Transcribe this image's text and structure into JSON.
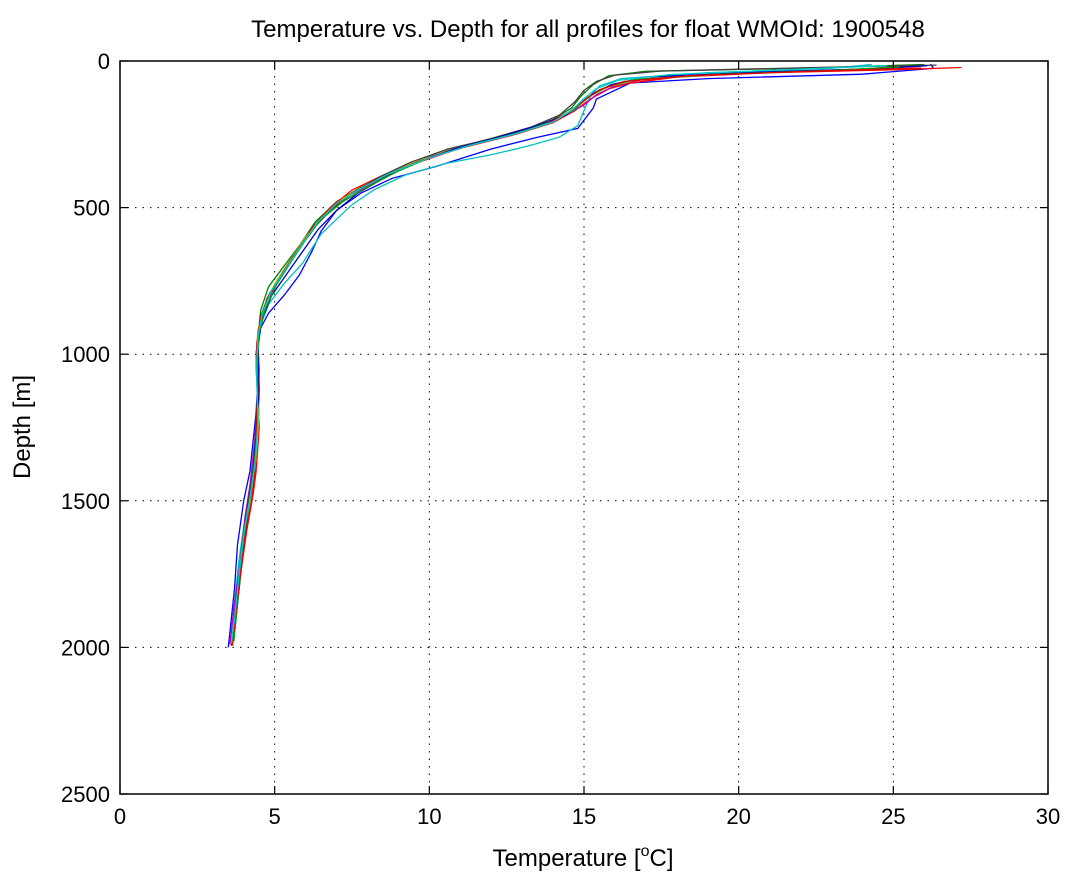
{
  "chart_data": {
    "type": "line",
    "title": "Temperature vs. Depth for all profiles for float WMOId: 1900548",
    "xlabel_main": "Temperature [",
    "xlabel_sup": "o",
    "xlabel_end": "C]",
    "ylabel": "Depth [m]",
    "xlim": [
      0,
      30
    ],
    "ylim": [
      0,
      2500
    ],
    "y_reversed": true,
    "grid": true,
    "xticks": [
      0,
      5,
      10,
      15,
      20,
      25,
      30
    ],
    "yticks": [
      0,
      500,
      1000,
      1500,
      2000,
      2500
    ],
    "series": [
      {
        "color": "#0000ff",
        "points": [
          [
            26.2,
            10
          ],
          [
            26.3,
            25
          ],
          [
            24,
            45
          ],
          [
            19,
            60
          ],
          [
            16.5,
            75
          ],
          [
            16,
            100
          ],
          [
            15.4,
            130
          ],
          [
            15.3,
            160
          ],
          [
            14.8,
            230
          ],
          [
            13.5,
            260
          ],
          [
            12,
            300
          ],
          [
            10.2,
            360
          ],
          [
            8.8,
            400
          ],
          [
            7.8,
            450
          ],
          [
            7,
            510
          ],
          [
            6.5,
            580
          ],
          [
            6.2,
            650
          ],
          [
            5.8,
            730
          ],
          [
            5.3,
            800
          ],
          [
            4.8,
            860
          ],
          [
            4.5,
            920
          ],
          [
            4.4,
            1000
          ],
          [
            4.45,
            1100
          ],
          [
            4.4,
            1200
          ],
          [
            4.3,
            1300
          ],
          [
            4.2,
            1400
          ],
          [
            4,
            1500
          ],
          [
            3.8,
            1650
          ],
          [
            3.7,
            1800
          ],
          [
            3.6,
            1900
          ],
          [
            3.5,
            2000
          ]
        ]
      },
      {
        "color": "#008000",
        "points": [
          [
            26,
            12
          ],
          [
            22,
            25
          ],
          [
            17,
            35
          ],
          [
            15.8,
            50
          ],
          [
            15.3,
            80
          ],
          [
            14.9,
            120
          ],
          [
            14.6,
            160
          ],
          [
            14,
            200
          ],
          [
            13,
            240
          ],
          [
            11.5,
            280
          ],
          [
            10,
            330
          ],
          [
            8.8,
            380
          ],
          [
            7.8,
            430
          ],
          [
            7,
            480
          ],
          [
            6.3,
            550
          ],
          [
            5.8,
            630
          ],
          [
            5.3,
            700
          ],
          [
            4.8,
            770
          ],
          [
            4.55,
            850
          ],
          [
            4.45,
            950
          ],
          [
            4.5,
            1050
          ],
          [
            4.45,
            1200
          ],
          [
            4.35,
            1350
          ],
          [
            4.2,
            1450
          ],
          [
            4.05,
            1550
          ],
          [
            3.9,
            1700
          ],
          [
            3.75,
            1850
          ],
          [
            3.6,
            1990
          ]
        ]
      },
      {
        "color": "#ff0000",
        "points": [
          [
            27.2,
            22
          ],
          [
            25,
            30
          ],
          [
            21,
            40
          ],
          [
            18,
            55
          ],
          [
            16.5,
            75
          ],
          [
            15.8,
            95
          ],
          [
            15.2,
            130
          ],
          [
            14.7,
            170
          ],
          [
            14,
            210
          ],
          [
            12.8,
            250
          ],
          [
            11.2,
            290
          ],
          [
            9.8,
            340
          ],
          [
            8.5,
            390
          ],
          [
            7.5,
            440
          ],
          [
            6.8,
            500
          ],
          [
            6.2,
            570
          ],
          [
            5.7,
            650
          ],
          [
            5.2,
            730
          ],
          [
            4.75,
            810
          ],
          [
            4.5,
            900
          ],
          [
            4.4,
            1000
          ],
          [
            4.45,
            1100
          ],
          [
            4.5,
            1250
          ],
          [
            4.4,
            1400
          ],
          [
            4.3,
            1480
          ],
          [
            4.1,
            1600
          ],
          [
            3.9,
            1750
          ],
          [
            3.75,
            1900
          ],
          [
            3.6,
            1995
          ]
        ]
      },
      {
        "color": "#00bfbf",
        "points": [
          [
            24.3,
            12
          ],
          [
            23,
            25
          ],
          [
            19,
            40
          ],
          [
            16.2,
            60
          ],
          [
            15.5,
            85
          ],
          [
            15.2,
            120
          ],
          [
            15,
            170
          ],
          [
            14.8,
            220
          ],
          [
            14.2,
            260
          ],
          [
            13.2,
            290
          ],
          [
            12,
            320
          ],
          [
            10.5,
            350
          ],
          [
            9.2,
            390
          ],
          [
            8.2,
            440
          ],
          [
            7.5,
            490
          ],
          [
            7,
            540
          ],
          [
            6.5,
            590
          ],
          [
            6.2,
            640
          ],
          [
            5.9,
            690
          ],
          [
            5.3,
            760
          ],
          [
            4.8,
            830
          ],
          [
            4.55,
            900
          ],
          [
            4.45,
            1000
          ],
          [
            4.5,
            1150
          ],
          [
            4.4,
            1300
          ],
          [
            4.25,
            1450
          ],
          [
            4.05,
            1550
          ],
          [
            3.85,
            1700
          ],
          [
            3.7,
            1850
          ],
          [
            3.55,
            1990
          ]
        ]
      },
      {
        "color": "#bf00bf",
        "points": [
          [
            25.5,
            15
          ],
          [
            24,
            28
          ],
          [
            20,
            42
          ],
          [
            17,
            60
          ],
          [
            16,
            85
          ],
          [
            15.4,
            115
          ],
          [
            15,
            150
          ],
          [
            14.3,
            190
          ],
          [
            13.2,
            230
          ],
          [
            11.8,
            270
          ],
          [
            10.4,
            310
          ],
          [
            9.2,
            360
          ],
          [
            8.3,
            410
          ],
          [
            7.4,
            460
          ],
          [
            6.7,
            520
          ],
          [
            6.1,
            590
          ],
          [
            5.6,
            670
          ],
          [
            5.1,
            750
          ],
          [
            4.7,
            830
          ],
          [
            4.5,
            910
          ],
          [
            4.4,
            1000
          ],
          [
            4.45,
            1150
          ],
          [
            4.35,
            1300
          ],
          [
            4.2,
            1450
          ],
          [
            4.05,
            1550
          ],
          [
            3.9,
            1700
          ],
          [
            3.7,
            1850
          ],
          [
            3.55,
            1990
          ]
        ]
      },
      {
        "color": "#bfbf00",
        "points": [
          [
            25.8,
            18
          ],
          [
            23.5,
            30
          ],
          [
            19.5,
            45
          ],
          [
            16.8,
            62
          ],
          [
            15.8,
            88
          ],
          [
            15.2,
            118
          ],
          [
            14.8,
            155
          ],
          [
            14.2,
            195
          ],
          [
            13,
            235
          ],
          [
            11.6,
            275
          ],
          [
            10.1,
            320
          ],
          [
            8.9,
            370
          ],
          [
            8,
            420
          ],
          [
            7.2,
            470
          ],
          [
            6.6,
            530
          ],
          [
            6,
            600
          ],
          [
            5.5,
            680
          ],
          [
            5,
            760
          ],
          [
            4.65,
            840
          ],
          [
            4.45,
            920
          ],
          [
            4.4,
            1050
          ],
          [
            4.5,
            1200
          ],
          [
            4.4,
            1350
          ],
          [
            4.25,
            1470
          ],
          [
            4.1,
            1570
          ],
          [
            3.95,
            1700
          ],
          [
            3.8,
            1850
          ],
          [
            3.65,
            1995
          ]
        ]
      },
      {
        "color": "#404040",
        "points": [
          [
            26.4,
            14
          ],
          [
            22.5,
            22
          ],
          [
            17.5,
            34
          ],
          [
            16,
            48
          ],
          [
            15.4,
            70
          ],
          [
            15,
            100
          ],
          [
            14.7,
            140
          ],
          [
            14.2,
            185
          ],
          [
            13.3,
            225
          ],
          [
            12,
            265
          ],
          [
            10.6,
            300
          ],
          [
            9.4,
            345
          ],
          [
            8.4,
            395
          ],
          [
            7.6,
            445
          ],
          [
            6.9,
            500
          ],
          [
            6.3,
            565
          ],
          [
            5.8,
            640
          ],
          [
            5.3,
            720
          ],
          [
            4.85,
            790
          ],
          [
            4.55,
            870
          ],
          [
            4.45,
            960
          ],
          [
            4.45,
            1100
          ],
          [
            4.4,
            1250
          ],
          [
            4.3,
            1400
          ],
          [
            4.15,
            1500
          ],
          [
            3.95,
            1650
          ],
          [
            3.8,
            1800
          ],
          [
            3.65,
            1950
          ]
        ]
      },
      {
        "color": "#0000bf",
        "points": [
          [
            26.1,
            16
          ],
          [
            24.5,
            26
          ],
          [
            20.5,
            38
          ],
          [
            17,
            55
          ],
          [
            15.9,
            80
          ],
          [
            15.3,
            110
          ],
          [
            14.9,
            145
          ],
          [
            14.4,
            185
          ],
          [
            13.5,
            220
          ],
          [
            12.2,
            260
          ],
          [
            10.8,
            300
          ],
          [
            9.6,
            345
          ],
          [
            8.6,
            395
          ],
          [
            7.7,
            450
          ],
          [
            7,
            510
          ],
          [
            6.4,
            575
          ],
          [
            5.9,
            650
          ],
          [
            5.4,
            725
          ],
          [
            4.9,
            800
          ],
          [
            4.6,
            880
          ],
          [
            4.45,
            970
          ],
          [
            4.5,
            1120
          ],
          [
            4.4,
            1280
          ],
          [
            4.3,
            1420
          ],
          [
            4.15,
            1520
          ],
          [
            4,
            1650
          ],
          [
            3.85,
            1800
          ],
          [
            3.7,
            1950
          ]
        ]
      },
      {
        "color": "#00a000",
        "points": [
          [
            25.2,
            20
          ],
          [
            23,
            32
          ],
          [
            19.2,
            46
          ],
          [
            16.6,
            64
          ],
          [
            15.7,
            90
          ],
          [
            15.1,
            125
          ],
          [
            14.7,
            165
          ],
          [
            14,
            205
          ],
          [
            12.9,
            245
          ],
          [
            11.4,
            285
          ],
          [
            10,
            330
          ],
          [
            8.9,
            380
          ],
          [
            8,
            430
          ],
          [
            7.2,
            480
          ],
          [
            6.5,
            540
          ],
          [
            6,
            610
          ],
          [
            5.5,
            690
          ],
          [
            5.05,
            765
          ],
          [
            4.7,
            845
          ],
          [
            4.5,
            925
          ],
          [
            4.4,
            1030
          ],
          [
            4.45,
            1180
          ],
          [
            4.38,
            1330
          ],
          [
            4.25,
            1460
          ],
          [
            4.1,
            1560
          ],
          [
            3.95,
            1700
          ],
          [
            3.8,
            1850
          ],
          [
            3.68,
            1980
          ]
        ]
      },
      {
        "color": "#e00000",
        "points": [
          [
            25.9,
            24
          ],
          [
            22,
            36
          ],
          [
            18.4,
            50
          ],
          [
            16.3,
            70
          ],
          [
            15.5,
            98
          ],
          [
            15,
            135
          ],
          [
            14.5,
            175
          ],
          [
            13.8,
            215
          ],
          [
            12.6,
            255
          ],
          [
            11.1,
            295
          ],
          [
            9.7,
            340
          ],
          [
            8.6,
            390
          ],
          [
            7.7,
            440
          ],
          [
            6.9,
            495
          ],
          [
            6.3,
            560
          ],
          [
            5.8,
            635
          ],
          [
            5.3,
            715
          ],
          [
            4.85,
            795
          ],
          [
            4.55,
            875
          ],
          [
            4.42,
            965
          ],
          [
            4.45,
            1110
          ],
          [
            4.42,
            1260
          ],
          [
            4.35,
            1420
          ],
          [
            4.25,
            1500
          ],
          [
            4.05,
            1620
          ],
          [
            3.88,
            1760
          ],
          [
            3.72,
            1910
          ],
          [
            3.62,
            1995
          ]
        ]
      },
      {
        "color": "#00d0d0",
        "points": [
          [
            24.8,
            16
          ],
          [
            21.5,
            30
          ],
          [
            17.8,
            46
          ],
          [
            16.1,
            66
          ],
          [
            15.4,
            94
          ],
          [
            15,
            128
          ],
          [
            14.6,
            168
          ],
          [
            14,
            208
          ],
          [
            12.8,
            248
          ],
          [
            11.3,
            288
          ],
          [
            9.9,
            334
          ],
          [
            8.7,
            384
          ],
          [
            7.8,
            434
          ],
          [
            7,
            486
          ],
          [
            6.4,
            548
          ],
          [
            5.9,
            622
          ],
          [
            5.4,
            702
          ],
          [
            4.9,
            782
          ],
          [
            4.6,
            862
          ],
          [
            4.45,
            945
          ],
          [
            4.42,
            1080
          ],
          [
            4.46,
            1230
          ],
          [
            4.36,
            1380
          ],
          [
            4.2,
            1490
          ],
          [
            4.02,
            1600
          ],
          [
            3.86,
            1740
          ],
          [
            3.72,
            1890
          ],
          [
            3.6,
            1985
          ]
        ]
      }
    ]
  }
}
